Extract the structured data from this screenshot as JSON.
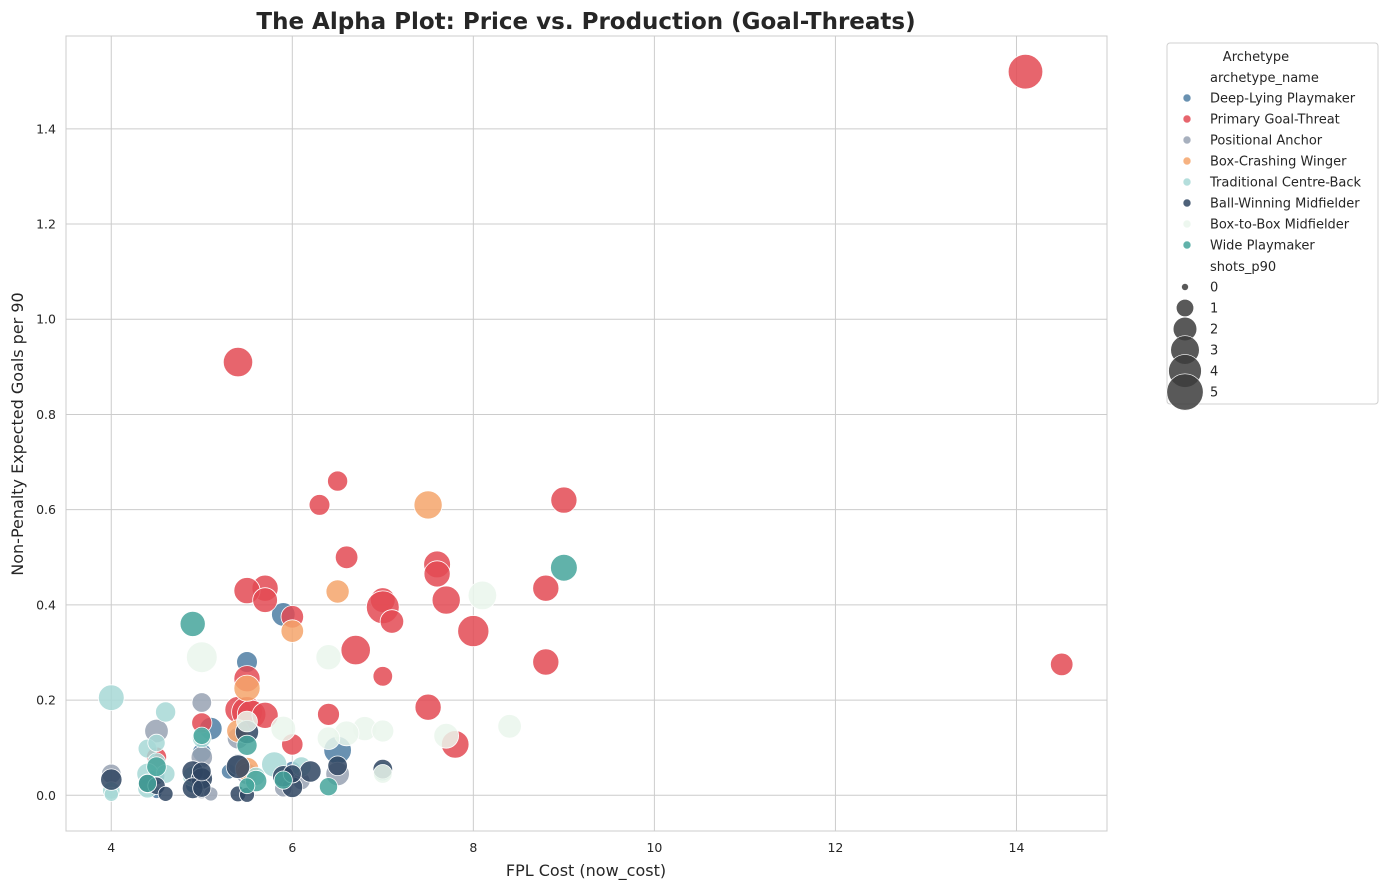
{
  "chart_data": {
    "type": "scatter",
    "title": "The Alpha Plot: Price vs. Production (Goal-Threats)",
    "xlabel": "FPL Cost (now_cost)",
    "ylabel": "Non-Penalty Expected Goals per 90",
    "xlim": [
      3.5,
      15.0
    ],
    "ylim": [
      -0.075,
      1.595
    ],
    "xticks": [
      "4",
      "6",
      "8",
      "10",
      "12",
      "14"
    ],
    "yticks": [
      "0.0",
      "0.2",
      "0.4",
      "0.6",
      "0.8",
      "1.0",
      "1.2",
      "1.4"
    ],
    "grid": true,
    "legend": {
      "placement": "outside-right",
      "title": "Archetype",
      "hue_title": "archetype_name",
      "size_title": "shots_p90",
      "size_labels": [
        "0",
        "1",
        "2",
        "3",
        "4",
        "5"
      ]
    },
    "series": [
      {
        "name": "Deep-Lying Playmaker",
        "color": "#4f7ea3",
        "points": [
          [
            5.9,
            0.38,
            2.0
          ],
          [
            5.5,
            0.28,
            1.5
          ],
          [
            6.5,
            0.095,
            2.8
          ],
          [
            5.1,
            0.14,
            1.8
          ],
          [
            5.0,
            0.09,
            1.2
          ],
          [
            4.5,
            0.04,
            0.9
          ],
          [
            6.0,
            0.055,
            0.8
          ],
          [
            5.3,
            0.05,
            0.7
          ],
          [
            4.9,
            0.02,
            0.6
          ],
          [
            4.5,
            0.005,
            0.3
          ]
        ]
      },
      {
        "name": "Primary Goal-Threat",
        "color": "#e34a54",
        "points": [
          [
            14.1,
            1.52,
            4.5
          ],
          [
            5.4,
            0.91,
            3.2
          ],
          [
            6.5,
            0.66,
            1.4
          ],
          [
            6.3,
            0.61,
            1.5
          ],
          [
            9.0,
            0.62,
            2.5
          ],
          [
            6.6,
            0.5,
            1.8
          ],
          [
            7.6,
            0.485,
            2.6
          ],
          [
            7.6,
            0.465,
            2.5
          ],
          [
            8.8,
            0.435,
            2.5
          ],
          [
            5.7,
            0.435,
            2.5
          ],
          [
            5.5,
            0.43,
            2.5
          ],
          [
            7.7,
            0.41,
            2.9
          ],
          [
            5.7,
            0.41,
            2.2
          ],
          [
            7.0,
            0.41,
            2.2
          ],
          [
            6.0,
            0.375,
            1.8
          ],
          [
            7.0,
            0.395,
            4.0
          ],
          [
            7.1,
            0.365,
            2.0
          ],
          [
            8.0,
            0.345,
            3.6
          ],
          [
            6.7,
            0.305,
            3.2
          ],
          [
            8.8,
            0.28,
            2.5
          ],
          [
            14.5,
            0.275,
            1.8
          ],
          [
            7.0,
            0.25,
            1.3
          ],
          [
            5.5,
            0.245,
            2.5
          ],
          [
            7.5,
            0.185,
            2.5
          ],
          [
            5.4,
            0.18,
            2.5
          ],
          [
            5.5,
            0.175,
            3.5
          ],
          [
            5.55,
            0.17,
            3.0
          ],
          [
            5.7,
            0.168,
            2.5
          ],
          [
            6.4,
            0.17,
            1.7
          ],
          [
            5.0,
            0.152,
            1.4
          ],
          [
            7.8,
            0.107,
            2.8
          ],
          [
            6.0,
            0.107,
            1.6
          ],
          [
            4.5,
            0.08,
            1.4
          ]
        ]
      },
      {
        "name": "Positional Anchor",
        "color": "#98a2b3",
        "points": [
          [
            5.0,
            0.195,
            1.3
          ],
          [
            4.5,
            0.135,
            2.0
          ],
          [
            5.4,
            0.12,
            1.6
          ],
          [
            5.0,
            0.08,
            1.6
          ],
          [
            4.0,
            0.045,
            1.3
          ],
          [
            5.0,
            0.04,
            1.2
          ],
          [
            5.4,
            0.065,
            1.5
          ],
          [
            6.5,
            0.045,
            2.0
          ],
          [
            5.5,
            0.045,
            1.6
          ],
          [
            6.1,
            0.03,
            1.0
          ],
          [
            5.9,
            0.015,
            1.0
          ],
          [
            5.0,
            0.01,
            0.9
          ],
          [
            5.1,
            0.003,
            0.6
          ]
        ]
      },
      {
        "name": "Box-Crashing Winger",
        "color": "#f4a46b",
        "points": [
          [
            7.5,
            0.61,
            2.9
          ],
          [
            6.5,
            0.428,
            1.9
          ],
          [
            6.0,
            0.345,
            1.8
          ],
          [
            5.5,
            0.225,
            2.5
          ],
          [
            5.4,
            0.135,
            1.8
          ],
          [
            5.5,
            0.055,
            2.0
          ]
        ]
      },
      {
        "name": "Traditional Centre-Back",
        "color": "#a7d8d6",
        "points": [
          [
            4.0,
            0.205,
            2.4
          ],
          [
            4.6,
            0.175,
            1.4
          ],
          [
            4.4,
            0.098,
            1.2
          ],
          [
            4.5,
            0.07,
            1.1
          ],
          [
            4.4,
            0.045,
            1.6
          ],
          [
            4.6,
            0.045,
            1.2
          ],
          [
            5.8,
            0.065,
            2.3
          ],
          [
            6.1,
            0.06,
            1.3
          ],
          [
            4.4,
            0.015,
            1.3
          ],
          [
            4.0,
            0.01,
            1.0
          ],
          [
            4.0,
            0.002,
            0.6
          ],
          [
            5.6,
            0.04,
            1.1
          ],
          [
            4.9,
            0.04,
            1.4
          ],
          [
            5.0,
            0.12,
            1.2
          ],
          [
            4.5,
            0.11,
            1.0
          ],
          [
            7.0,
            0.05,
            1.2
          ]
        ]
      },
      {
        "name": "Ball-Winning Midfielder",
        "color": "#2f4562",
        "points": [
          [
            5.5,
            0.133,
            1.9
          ],
          [
            5.4,
            0.06,
            2.0
          ],
          [
            4.9,
            0.05,
            1.6
          ],
          [
            4.0,
            0.033,
            1.6
          ],
          [
            5.0,
            0.035,
            1.6
          ],
          [
            4.9,
            0.015,
            1.5
          ],
          [
            5.0,
            0.015,
            1.1
          ],
          [
            4.4,
            0.025,
            1.2
          ],
          [
            4.5,
            0.02,
            1.0
          ],
          [
            4.6,
            0.003,
            0.7
          ],
          [
            5.4,
            0.003,
            0.8
          ],
          [
            5.5,
            0.001,
            0.7
          ],
          [
            6.2,
            0.05,
            1.6
          ],
          [
            6.0,
            0.017,
            1.5
          ],
          [
            6.5,
            0.062,
            1.3
          ],
          [
            7.0,
            0.055,
            1.3
          ],
          [
            5.9,
            0.04,
            1.6
          ],
          [
            6.0,
            0.045,
            1.1
          ],
          [
            5.0,
            0.05,
            1.2
          ]
        ]
      },
      {
        "name": "Box-to-Box Midfielder",
        "color": "#eaf6ec",
        "points": [
          [
            8.1,
            0.42,
            3.0
          ],
          [
            5.0,
            0.29,
            3.5
          ],
          [
            6.4,
            0.29,
            2.3
          ],
          [
            8.4,
            0.145,
            2.0
          ],
          [
            6.8,
            0.14,
            2.1
          ],
          [
            7.0,
            0.135,
            1.7
          ],
          [
            6.6,
            0.13,
            2.2
          ],
          [
            5.9,
            0.14,
            2.2
          ],
          [
            7.7,
            0.125,
            2.2
          ],
          [
            6.4,
            0.12,
            1.8
          ],
          [
            5.5,
            0.155,
            1.5
          ],
          [
            7.0,
            0.045,
            1.2
          ]
        ]
      },
      {
        "name": "Wide Playmaker",
        "color": "#45a59b",
        "points": [
          [
            9.0,
            0.478,
            2.6
          ],
          [
            4.9,
            0.36,
            2.3
          ],
          [
            5.5,
            0.105,
            1.4
          ],
          [
            5.0,
            0.125,
            1.0
          ],
          [
            5.6,
            0.03,
            1.6
          ],
          [
            5.9,
            0.032,
            1.1
          ],
          [
            6.4,
            0.018,
            1.1
          ],
          [
            4.5,
            0.06,
            1.3
          ],
          [
            4.4,
            0.025,
            1.1
          ],
          [
            5.5,
            0.02,
            0.8
          ]
        ]
      }
    ]
  }
}
